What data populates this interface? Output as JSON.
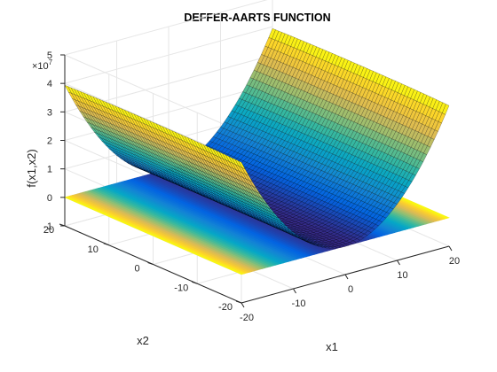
{
  "chart_data": {
    "type": "surface",
    "title": "DEFFER-AARTS FUNCTION",
    "xlabel": "x1",
    "ylabel": "x2",
    "zlabel": "f(x1,x2)",
    "exponent_label": "×10",
    "exponent_power": "7",
    "function": "f(x1,x2) = 1e5*x1^2 + x2^2 - (x1^2 + x2^2)^2 + 1e-13*(x1^2 + x2^2)^4",
    "xlim": [
      -20,
      20
    ],
    "ylim": [
      -20,
      20
    ],
    "zlim": [
      -1,
      5
    ],
    "z_scale": 10000000,
    "x_ticks": [
      "-20",
      "-10",
      "0",
      "10",
      "20"
    ],
    "y_ticks": [
      "-20",
      "-10",
      "0",
      "10",
      "20"
    ],
    "z_ticks": [
      "-1",
      "0",
      "1",
      "2",
      "3",
      "4",
      "5"
    ],
    "grid": true,
    "colormap": "parula",
    "contour_projection": true,
    "colors": {
      "axis": "#262626",
      "grid": "#e6e6e6",
      "mesh_line": "#000000"
    }
  }
}
